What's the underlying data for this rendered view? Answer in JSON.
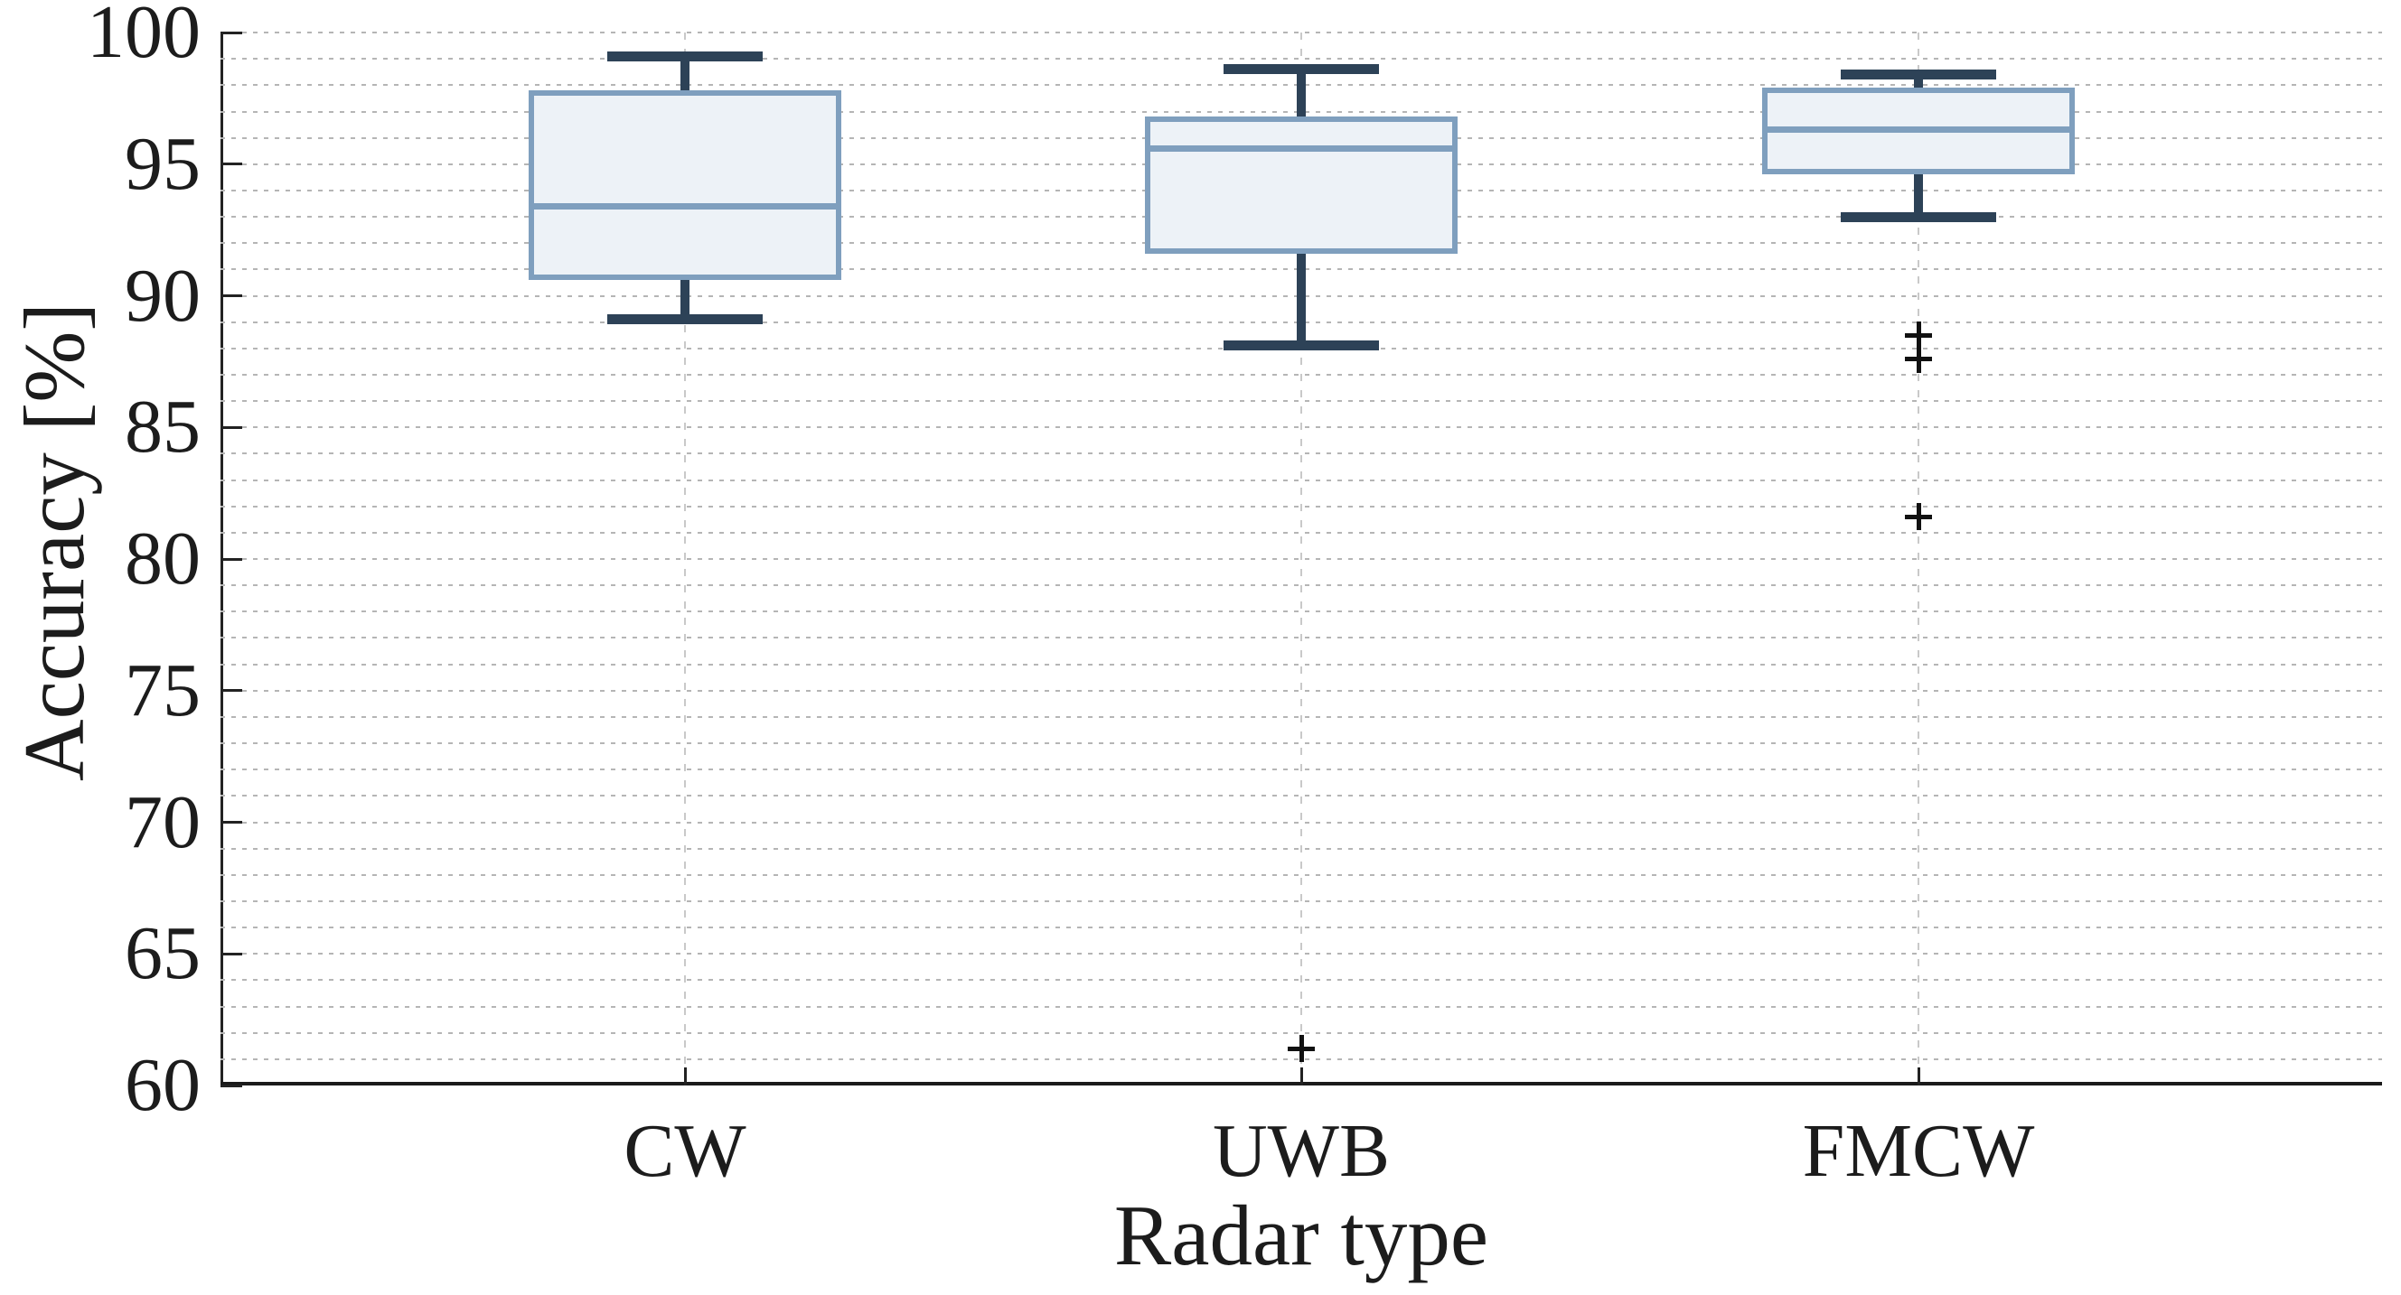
{
  "chart_data": {
    "type": "boxplot",
    "title": "",
    "xlabel": "Radar type",
    "ylabel": "Accuracy [%]",
    "categories": [
      "CW",
      "UWB",
      "FMCW"
    ],
    "ylim": [
      60,
      100
    ],
    "y_major_ticks": [
      60,
      65,
      70,
      75,
      80,
      85,
      90,
      95,
      100
    ],
    "y_minor_grid_step": 1,
    "grid": {
      "horizontal_minor_dotted": true,
      "vertical_dashed_at_categories": true,
      "legend": "none"
    },
    "series": [
      {
        "category": "CW",
        "whisker_low": 89.1,
        "q1": 90.6,
        "median": 93.4,
        "q3": 97.8,
        "whisker_high": 99.1,
        "outliers": []
      },
      {
        "category": "UWB",
        "whisker_low": 88.1,
        "q1": 91.6,
        "median": 95.6,
        "q3": 96.8,
        "whisker_high": 98.6,
        "outliers": [
          61.4
        ]
      },
      {
        "category": "FMCW",
        "whisker_low": 93.0,
        "q1": 94.6,
        "median": 96.3,
        "q3": 97.9,
        "whisker_high": 98.4,
        "outliers": [
          88.5,
          87.6,
          81.6
        ]
      }
    ],
    "colors": {
      "box_edge": "#7f9fbe",
      "box_fill": "#edf2f7",
      "median": "#7f9fbe",
      "whisker": "#2d4257",
      "outlier": "#111111",
      "grid_minor": "#b5b5b5",
      "grid_vertical": "#c9c9c9",
      "axis": "#222222",
      "text": "#1c1c1c",
      "background": "#ffffff"
    }
  }
}
